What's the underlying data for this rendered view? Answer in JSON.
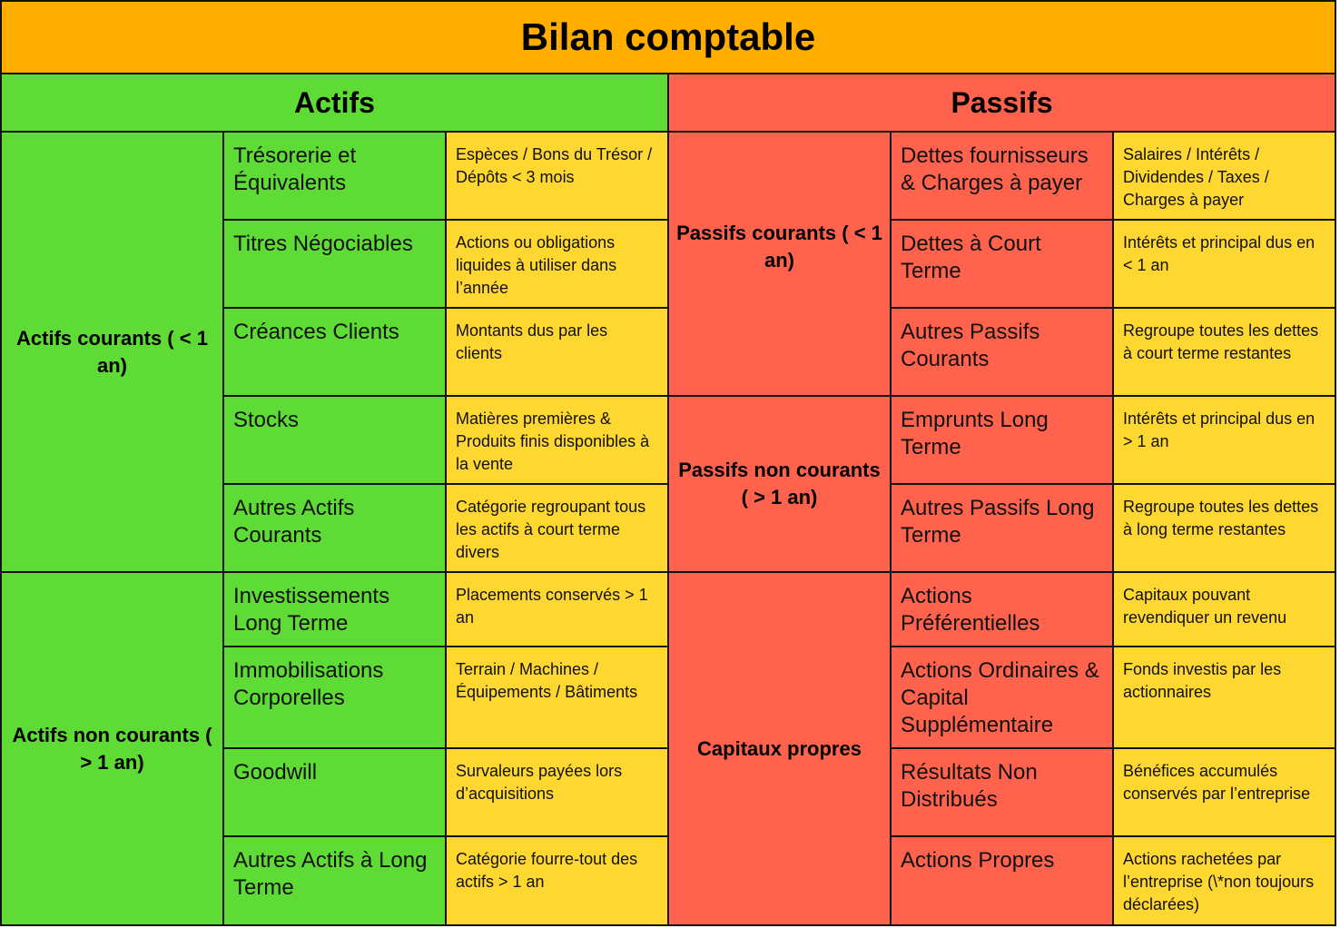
{
  "title": "Bilan comptable",
  "sections": {
    "actifs": "Actifs",
    "passifs": "Passifs"
  },
  "actifs": {
    "courants": {
      "label": "Actifs courants ( < 1 an)",
      "rows": [
        {
          "item": "Trésorerie et Équivalents",
          "desc": "Espèces / Bons du Trésor / Dépôts < 3 mois"
        },
        {
          "item": "Titres Négociables",
          "desc": "Actions ou obligations liquides à utiliser dans l’année"
        },
        {
          "item": "Créances Clients",
          "desc": "Montants dus par les clients"
        },
        {
          "item": "Stocks",
          "desc": "Matières premières & Produits finis disponibles à la vente"
        },
        {
          "item": "Autres Actifs Courants",
          "desc": "Catégorie regroupant tous les actifs à court terme divers"
        }
      ]
    },
    "non_courants": {
      "label": "Actifs non courants ( > 1 an)",
      "rows": [
        {
          "item": "Investissements Long Terme",
          "desc": "Placements conservés > 1 an"
        },
        {
          "item": "Immobilisations Corporelles",
          "desc": "Terrain / Machines / Équipements / Bâtiments"
        },
        {
          "item": "Goodwill",
          "desc": "Survaleurs payées lors d’acquisitions"
        },
        {
          "item": "Autres Actifs à Long Terme",
          "desc": "Catégorie fourre-tout des actifs > 1 an"
        }
      ]
    }
  },
  "passifs": {
    "courants": {
      "label": "Passifs courants ( < 1 an)",
      "rows": [
        {
          "item": "Dettes fournisseurs & Charges à payer",
          "desc": "Salaires / Intérêts / Dividendes / Taxes / Charges à payer"
        },
        {
          "item": "Dettes à Court Terme",
          "desc": "Intérêts et principal dus en < 1 an"
        },
        {
          "item": "Autres Passifs Courants",
          "desc": "Regroupe toutes les dettes à court terme restantes"
        }
      ]
    },
    "non_courants": {
      "label": "Passifs non courants ( > 1 an)",
      "rows": [
        {
          "item": "Emprunts Long Terme",
          "desc": "Intérêts et principal dus en > 1 an"
        },
        {
          "item": "Autres Passifs Long Terme",
          "desc": "Regroupe toutes les dettes à long terme restantes"
        }
      ]
    },
    "capitaux": {
      "label": "Capitaux propres",
      "rows": [
        {
          "item": "Actions Préférentielles",
          "desc": "Capitaux pouvant revendiquer un revenu"
        },
        {
          "item": "Actions Ordinaires & Capital Supplémentaire",
          "desc": "Fonds investis par les actionnaires"
        },
        {
          "item": "Résultats Non Distribués",
          "desc": "Bénéfices accumulés conservés par l’entreprise"
        },
        {
          "item": "Actions Propres",
          "desc": "Actions rachetées par l’entreprise (\\*non toujours déclarées)"
        }
      ]
    }
  },
  "colors": {
    "title": "#FFAE00",
    "actifs": "#5EDB35",
    "passifs": "#FF634D",
    "description": "#FFD731"
  }
}
